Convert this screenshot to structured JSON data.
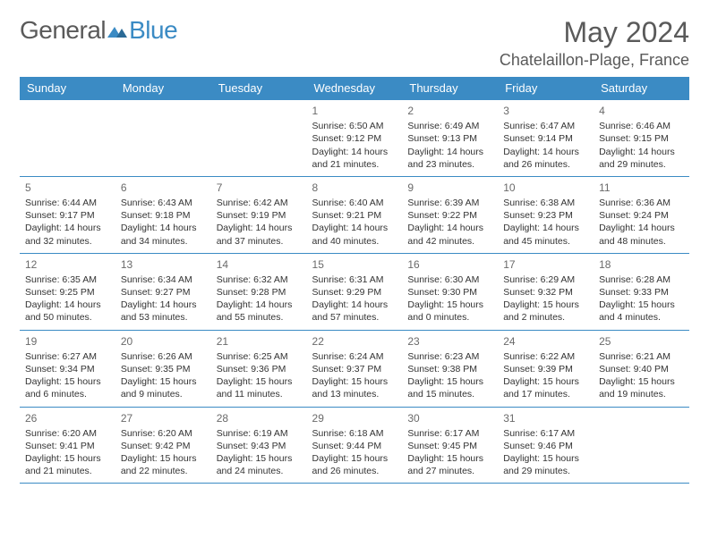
{
  "logo": {
    "text1": "General",
    "text2": "Blue"
  },
  "title": "May 2024",
  "location": "Chatelaillon-Plage, France",
  "colors": {
    "header_bg": "#3b8bc4",
    "header_text": "#ffffff",
    "grid_line": "#3b8bc4",
    "text": "#333333",
    "muted": "#6a6a6a",
    "page_bg": "#ffffff"
  },
  "day_headers": [
    "Sunday",
    "Monday",
    "Tuesday",
    "Wednesday",
    "Thursday",
    "Friday",
    "Saturday"
  ],
  "weeks": [
    [
      {
        "day": "",
        "l1": "",
        "l2": "",
        "l3": "",
        "l4": ""
      },
      {
        "day": "",
        "l1": "",
        "l2": "",
        "l3": "",
        "l4": ""
      },
      {
        "day": "",
        "l1": "",
        "l2": "",
        "l3": "",
        "l4": ""
      },
      {
        "day": "1",
        "l1": "Sunrise: 6:50 AM",
        "l2": "Sunset: 9:12 PM",
        "l3": "Daylight: 14 hours",
        "l4": "and 21 minutes."
      },
      {
        "day": "2",
        "l1": "Sunrise: 6:49 AM",
        "l2": "Sunset: 9:13 PM",
        "l3": "Daylight: 14 hours",
        "l4": "and 23 minutes."
      },
      {
        "day": "3",
        "l1": "Sunrise: 6:47 AM",
        "l2": "Sunset: 9:14 PM",
        "l3": "Daylight: 14 hours",
        "l4": "and 26 minutes."
      },
      {
        "day": "4",
        "l1": "Sunrise: 6:46 AM",
        "l2": "Sunset: 9:15 PM",
        "l3": "Daylight: 14 hours",
        "l4": "and 29 minutes."
      }
    ],
    [
      {
        "day": "5",
        "l1": "Sunrise: 6:44 AM",
        "l2": "Sunset: 9:17 PM",
        "l3": "Daylight: 14 hours",
        "l4": "and 32 minutes."
      },
      {
        "day": "6",
        "l1": "Sunrise: 6:43 AM",
        "l2": "Sunset: 9:18 PM",
        "l3": "Daylight: 14 hours",
        "l4": "and 34 minutes."
      },
      {
        "day": "7",
        "l1": "Sunrise: 6:42 AM",
        "l2": "Sunset: 9:19 PM",
        "l3": "Daylight: 14 hours",
        "l4": "and 37 minutes."
      },
      {
        "day": "8",
        "l1": "Sunrise: 6:40 AM",
        "l2": "Sunset: 9:21 PM",
        "l3": "Daylight: 14 hours",
        "l4": "and 40 minutes."
      },
      {
        "day": "9",
        "l1": "Sunrise: 6:39 AM",
        "l2": "Sunset: 9:22 PM",
        "l3": "Daylight: 14 hours",
        "l4": "and 42 minutes."
      },
      {
        "day": "10",
        "l1": "Sunrise: 6:38 AM",
        "l2": "Sunset: 9:23 PM",
        "l3": "Daylight: 14 hours",
        "l4": "and 45 minutes."
      },
      {
        "day": "11",
        "l1": "Sunrise: 6:36 AM",
        "l2": "Sunset: 9:24 PM",
        "l3": "Daylight: 14 hours",
        "l4": "and 48 minutes."
      }
    ],
    [
      {
        "day": "12",
        "l1": "Sunrise: 6:35 AM",
        "l2": "Sunset: 9:25 PM",
        "l3": "Daylight: 14 hours",
        "l4": "and 50 minutes."
      },
      {
        "day": "13",
        "l1": "Sunrise: 6:34 AM",
        "l2": "Sunset: 9:27 PM",
        "l3": "Daylight: 14 hours",
        "l4": "and 53 minutes."
      },
      {
        "day": "14",
        "l1": "Sunrise: 6:32 AM",
        "l2": "Sunset: 9:28 PM",
        "l3": "Daylight: 14 hours",
        "l4": "and 55 minutes."
      },
      {
        "day": "15",
        "l1": "Sunrise: 6:31 AM",
        "l2": "Sunset: 9:29 PM",
        "l3": "Daylight: 14 hours",
        "l4": "and 57 minutes."
      },
      {
        "day": "16",
        "l1": "Sunrise: 6:30 AM",
        "l2": "Sunset: 9:30 PM",
        "l3": "Daylight: 15 hours",
        "l4": "and 0 minutes."
      },
      {
        "day": "17",
        "l1": "Sunrise: 6:29 AM",
        "l2": "Sunset: 9:32 PM",
        "l3": "Daylight: 15 hours",
        "l4": "and 2 minutes."
      },
      {
        "day": "18",
        "l1": "Sunrise: 6:28 AM",
        "l2": "Sunset: 9:33 PM",
        "l3": "Daylight: 15 hours",
        "l4": "and 4 minutes."
      }
    ],
    [
      {
        "day": "19",
        "l1": "Sunrise: 6:27 AM",
        "l2": "Sunset: 9:34 PM",
        "l3": "Daylight: 15 hours",
        "l4": "and 6 minutes."
      },
      {
        "day": "20",
        "l1": "Sunrise: 6:26 AM",
        "l2": "Sunset: 9:35 PM",
        "l3": "Daylight: 15 hours",
        "l4": "and 9 minutes."
      },
      {
        "day": "21",
        "l1": "Sunrise: 6:25 AM",
        "l2": "Sunset: 9:36 PM",
        "l3": "Daylight: 15 hours",
        "l4": "and 11 minutes."
      },
      {
        "day": "22",
        "l1": "Sunrise: 6:24 AM",
        "l2": "Sunset: 9:37 PM",
        "l3": "Daylight: 15 hours",
        "l4": "and 13 minutes."
      },
      {
        "day": "23",
        "l1": "Sunrise: 6:23 AM",
        "l2": "Sunset: 9:38 PM",
        "l3": "Daylight: 15 hours",
        "l4": "and 15 minutes."
      },
      {
        "day": "24",
        "l1": "Sunrise: 6:22 AM",
        "l2": "Sunset: 9:39 PM",
        "l3": "Daylight: 15 hours",
        "l4": "and 17 minutes."
      },
      {
        "day": "25",
        "l1": "Sunrise: 6:21 AM",
        "l2": "Sunset: 9:40 PM",
        "l3": "Daylight: 15 hours",
        "l4": "and 19 minutes."
      }
    ],
    [
      {
        "day": "26",
        "l1": "Sunrise: 6:20 AM",
        "l2": "Sunset: 9:41 PM",
        "l3": "Daylight: 15 hours",
        "l4": "and 21 minutes."
      },
      {
        "day": "27",
        "l1": "Sunrise: 6:20 AM",
        "l2": "Sunset: 9:42 PM",
        "l3": "Daylight: 15 hours",
        "l4": "and 22 minutes."
      },
      {
        "day": "28",
        "l1": "Sunrise: 6:19 AM",
        "l2": "Sunset: 9:43 PM",
        "l3": "Daylight: 15 hours",
        "l4": "and 24 minutes."
      },
      {
        "day": "29",
        "l1": "Sunrise: 6:18 AM",
        "l2": "Sunset: 9:44 PM",
        "l3": "Daylight: 15 hours",
        "l4": "and 26 minutes."
      },
      {
        "day": "30",
        "l1": "Sunrise: 6:17 AM",
        "l2": "Sunset: 9:45 PM",
        "l3": "Daylight: 15 hours",
        "l4": "and 27 minutes."
      },
      {
        "day": "31",
        "l1": "Sunrise: 6:17 AM",
        "l2": "Sunset: 9:46 PM",
        "l3": "Daylight: 15 hours",
        "l4": "and 29 minutes."
      },
      {
        "day": "",
        "l1": "",
        "l2": "",
        "l3": "",
        "l4": ""
      }
    ]
  ]
}
